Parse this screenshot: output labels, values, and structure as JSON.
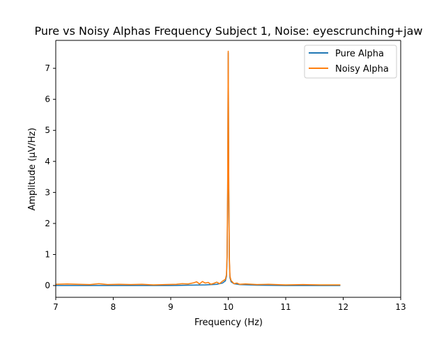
{
  "chart_data": {
    "type": "line",
    "title": "Pure vs Noisy Alphas Frequency Subject 1, Noise: eyescrunching+jaw",
    "xlabel": "Frequency (Hz)",
    "ylabel": "Amplitude (μV/Hz)",
    "xlim": [
      7,
      13
    ],
    "ylim": [
      -0.38,
      7.9
    ],
    "xticks": [
      "7",
      "8",
      "9",
      "10",
      "11",
      "12",
      "13"
    ],
    "yticks": [
      "0",
      "1",
      "2",
      "3",
      "4",
      "5",
      "6",
      "7"
    ],
    "grid": false,
    "legend_position": "top-right",
    "series": [
      {
        "name": "Pure Alpha",
        "color": "#1f77b4",
        "x": [
          7.0,
          7.5,
          8.0,
          8.5,
          9.0,
          9.3,
          9.6,
          9.8,
          9.9,
          9.95,
          9.97,
          9.98,
          9.99,
          10.0,
          10.01,
          10.02,
          10.03,
          10.05,
          10.1,
          10.2,
          10.5,
          11.0,
          11.5,
          11.95
        ],
        "y": [
          0.0,
          0.0,
          0.0,
          0.0,
          0.0,
          0.01,
          0.02,
          0.04,
          0.08,
          0.15,
          0.3,
          0.9,
          3.0,
          7.5,
          3.0,
          0.8,
          0.25,
          0.12,
          0.06,
          0.03,
          0.01,
          0.0,
          0.0,
          0.0
        ]
      },
      {
        "name": "Noisy Alpha",
        "color": "#ff7f0e",
        "x": [
          7.0,
          7.2,
          7.4,
          7.6,
          7.75,
          7.9,
          8.1,
          8.3,
          8.5,
          8.7,
          8.9,
          9.1,
          9.2,
          9.3,
          9.4,
          9.45,
          9.5,
          9.55,
          9.6,
          9.65,
          9.7,
          9.75,
          9.8,
          9.85,
          9.9,
          9.95,
          9.97,
          9.98,
          9.99,
          10.0,
          10.01,
          10.02,
          10.03,
          10.05,
          10.08,
          10.1,
          10.15,
          10.2,
          10.3,
          10.5,
          10.7,
          11.0,
          11.3,
          11.6,
          11.95
        ],
        "y": [
          0.04,
          0.05,
          0.04,
          0.03,
          0.06,
          0.03,
          0.04,
          0.03,
          0.04,
          0.02,
          0.03,
          0.04,
          0.06,
          0.05,
          0.09,
          0.12,
          0.05,
          0.13,
          0.08,
          0.1,
          0.04,
          0.07,
          0.11,
          0.06,
          0.14,
          0.2,
          0.35,
          1.0,
          3.2,
          7.55,
          3.1,
          0.9,
          0.3,
          0.16,
          0.1,
          0.06,
          0.08,
          0.04,
          0.05,
          0.03,
          0.04,
          0.02,
          0.03,
          0.02,
          0.02
        ]
      }
    ]
  }
}
